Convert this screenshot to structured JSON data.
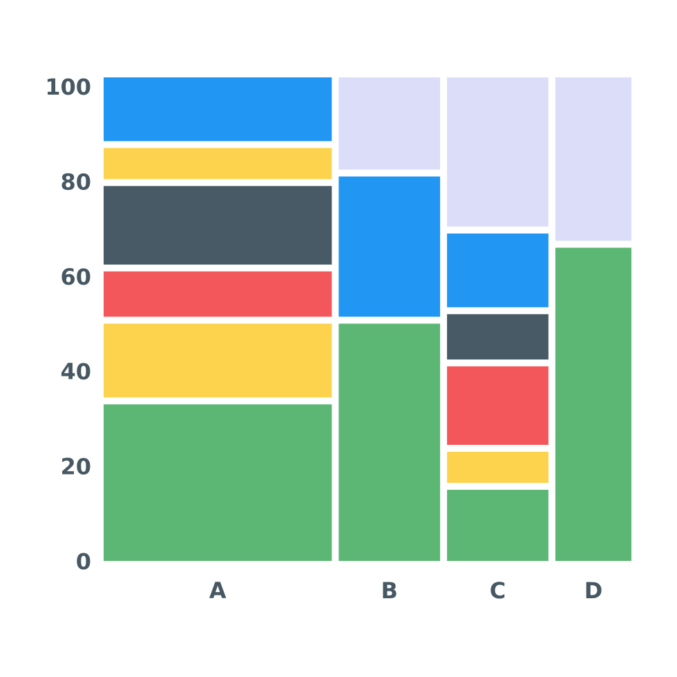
{
  "chart_data": {
    "type": "bar",
    "subtype": "mosaic",
    "title": "",
    "xlabel": "",
    "ylabel": "",
    "ylim": [
      0,
      100
    ],
    "yticks": [
      0,
      20,
      40,
      60,
      80,
      100
    ],
    "grid": false,
    "legend": "none",
    "colors": {
      "green": "#5db774",
      "yellow": "#fdd34d",
      "red": "#f3575b",
      "slate": "#475a65",
      "blue": "#2296f3",
      "lavender": "#dcdef9"
    },
    "categories": [
      {
        "label": "A",
        "width_share": 0.45,
        "segments": [
          {
            "color": "green",
            "value": 33
          },
          {
            "color": "yellow",
            "value": 17
          },
          {
            "color": "red",
            "value": 11
          },
          {
            "color": "slate",
            "value": 18
          },
          {
            "color": "yellow",
            "value": 8
          },
          {
            "color": "blue",
            "value": 16
          }
        ]
      },
      {
        "label": "B",
        "width_share": 0.2,
        "segments": [
          {
            "color": "green",
            "value": 50
          },
          {
            "color": "blue",
            "value": 31
          },
          {
            "color": "lavender",
            "value": 22
          }
        ]
      },
      {
        "label": "C",
        "width_share": 0.2,
        "segments": [
          {
            "color": "green",
            "value": 15
          },
          {
            "color": "yellow",
            "value": 8
          },
          {
            "color": "red",
            "value": 18
          },
          {
            "color": "slate",
            "value": 11
          },
          {
            "color": "blue",
            "value": 17
          },
          {
            "color": "lavender",
            "value": 34
          }
        ]
      },
      {
        "label": "D",
        "width_share": 0.15,
        "segments": [
          {
            "color": "green",
            "value": 66
          },
          {
            "color": "lavender",
            "value": 37
          }
        ]
      }
    ]
  }
}
